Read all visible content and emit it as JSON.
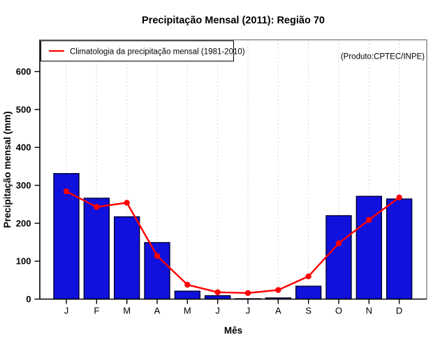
{
  "title": "Precipitação Mensal (2011): Região 70",
  "annotation": "(Produto:CPTEC/INPE)",
  "legend": {
    "label": "Climatologia da precipitação mensal (1981-2010)",
    "position": "top-left"
  },
  "colors": {
    "bar_fill": "#1111DD",
    "bar_border": "#000033",
    "line": "#FF0000",
    "annotation_text": "#808080",
    "gridline": "#D6D6D6",
    "box": "#555555",
    "axis": "#000000"
  },
  "chart_data": {
    "type": "bar",
    "title": "Precipitação Mensal (2011): Região 70",
    "xlabel": "Mês",
    "ylabel": "Precipitação mensal (mm)",
    "categories": [
      "J",
      "F",
      "M",
      "A",
      "M",
      "J",
      "J",
      "A",
      "S",
      "O",
      "N",
      "D"
    ],
    "series": [
      {
        "name": "Precipitação Mensal (2011)",
        "type": "bar",
        "values": [
          331,
          266,
          217,
          149,
          21,
          9,
          1,
          3,
          34,
          220,
          271,
          264
        ]
      },
      {
        "name": "Climatologia da precipitação mensal (1981-2010)",
        "type": "line",
        "values": [
          284,
          243,
          254,
          114,
          38,
          18,
          16,
          24,
          60,
          147,
          209,
          268
        ]
      }
    ],
    "ylim": [
      0,
      600
    ],
    "yticks": [
      0,
      100,
      200,
      300,
      400,
      500,
      600
    ],
    "grid": "vertical-dashed",
    "legend_position": "top-left",
    "annotation": "(Produto:CPTEC/INPE)"
  }
}
